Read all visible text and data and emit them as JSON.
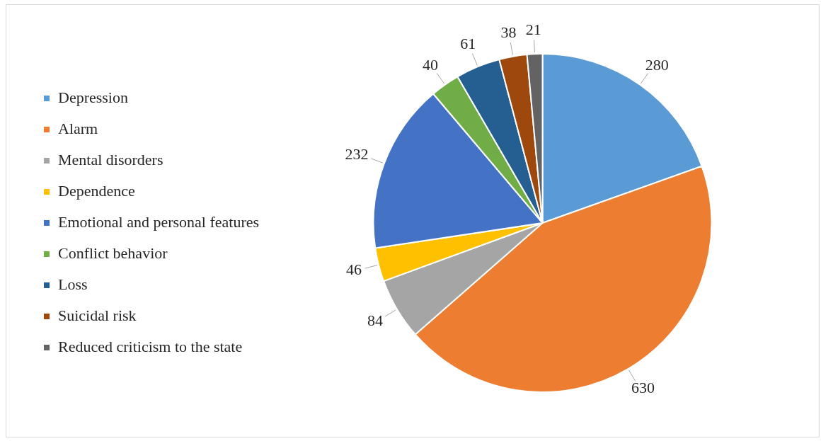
{
  "chart_data": {
    "type": "pie",
    "categories": [
      "Depression",
      "Alarm",
      "Mental disorders",
      "Dependence",
      "Emotional and personal features",
      "Conflict behavior",
      "Loss",
      "Suicidal risk",
      "Reduced criticism to the state"
    ],
    "values": [
      280,
      630,
      84,
      46,
      232,
      40,
      61,
      38,
      21
    ],
    "colors": [
      "#5b9bd5",
      "#ed7d31",
      "#a5a5a5",
      "#ffc000",
      "#4472c4",
      "#70ad47",
      "#255e91",
      "#9e480e",
      "#636363"
    ],
    "data_labels": true,
    "legend": "left"
  }
}
